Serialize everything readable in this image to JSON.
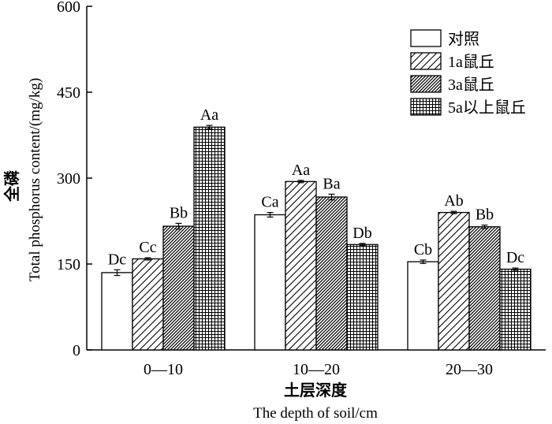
{
  "chart_data": {
    "type": "bar",
    "categories": [
      "0—10",
      "10—20",
      "20—30"
    ],
    "series": [
      {
        "name": "对照",
        "pattern": "white",
        "values": [
          135,
          236,
          154
        ],
        "errors": [
          5,
          4,
          3
        ],
        "letters": [
          "Dc",
          "Ca",
          "Cb"
        ]
      },
      {
        "name": "1a鼠丘",
        "pattern": "diagonal",
        "values": [
          159,
          294,
          240
        ],
        "errors": [
          2,
          2,
          2
        ],
        "letters": [
          "Cc",
          "Aa",
          "Ab"
        ]
      },
      {
        "name": "3a鼠丘",
        "pattern": "dense-diagonal",
        "values": [
          216,
          267,
          215
        ],
        "errors": [
          5,
          5,
          3
        ],
        "letters": [
          "Bb",
          "Ba",
          "Bb"
        ]
      },
      {
        "name": "5a以上鼠丘",
        "pattern": "grid",
        "values": [
          389,
          184,
          141
        ],
        "errors": [
          3,
          2,
          2
        ],
        "letters": [
          "Aa",
          "Db",
          "Dc"
        ]
      }
    ],
    "ylabel_cn": "全磷",
    "ylabel_en": "Total phosphorus content/(mg/kg)",
    "xlabel_cn": "土层深度",
    "xlabel_en": "The depth of soil/cm",
    "ylim": [
      0,
      600
    ],
    "yticks": [
      0,
      150,
      300,
      450,
      600
    ],
    "legend_position": "top-right",
    "grid": false
  },
  "colors": {
    "ink": "#000000",
    "fill": "#ffffff"
  }
}
